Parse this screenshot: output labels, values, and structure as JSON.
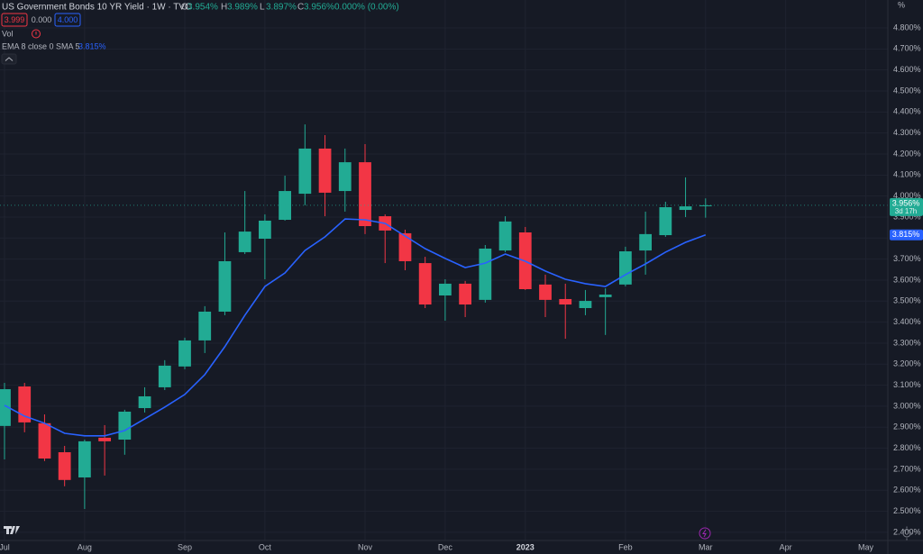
{
  "chart_data": {
    "type": "candlestick",
    "title": "US Government Bonds 10 YR Yield · 1W · TVC",
    "legend": {
      "ohlc": [
        {
          "key": "O",
          "value": "3.954%"
        },
        {
          "key": "H",
          "value": "3.989%"
        },
        {
          "key": "L",
          "value": "3.897%"
        },
        {
          "key": "C",
          "value": "3.956%"
        }
      ],
      "change": "0.000% (0.00%)",
      "bid": "3.999",
      "spread": "0.000",
      "ask": "4.000",
      "vol": "Vol"
    },
    "y_unit": "%",
    "categories": [
      null,
      null,
      null,
      null,
      null,
      null,
      null,
      null,
      null,
      null,
      null,
      null,
      null,
      null,
      null,
      null,
      null,
      null,
      null,
      null,
      null,
      null,
      null,
      null,
      null,
      null,
      null,
      null,
      null,
      null,
      null,
      null,
      null,
      null,
      null,
      null
    ],
    "open": [
      2.906,
      3.094,
      2.919,
      2.781,
      2.661,
      2.85,
      2.841,
      2.991,
      3.09,
      3.189,
      3.313,
      3.45,
      3.733,
      3.797,
      3.887,
      4.011,
      4.226,
      4.024,
      4.161,
      3.904,
      3.823,
      3.681,
      3.527,
      3.583,
      3.506,
      3.741,
      3.827,
      3.579,
      3.51,
      3.467,
      3.519,
      3.579,
      3.741,
      3.814,
      3.934,
      3.954
    ],
    "high": [
      3.111,
      3.111,
      2.961,
      2.811,
      2.841,
      2.91,
      2.983,
      3.09,
      3.219,
      3.326,
      3.476,
      3.827,
      4.024,
      3.913,
      4.097,
      4.341,
      4.29,
      4.226,
      4.247,
      3.913,
      3.84,
      3.711,
      3.604,
      3.596,
      3.767,
      3.904,
      3.853,
      3.626,
      3.583,
      3.553,
      3.561,
      3.759,
      3.926,
      3.973,
      4.089,
      3.989
    ],
    "low": [
      2.747,
      2.876,
      2.739,
      2.619,
      2.511,
      2.67,
      2.769,
      2.97,
      3.077,
      3.176,
      3.253,
      3.433,
      3.724,
      3.604,
      3.883,
      3.956,
      3.904,
      3.926,
      3.819,
      3.681,
      3.647,
      3.467,
      3.407,
      3.424,
      3.493,
      3.733,
      3.553,
      3.424,
      3.321,
      3.433,
      3.339,
      3.57,
      3.626,
      3.806,
      3.9,
      3.897
    ],
    "close": [
      3.081,
      2.923,
      2.751,
      2.649,
      2.833,
      2.833,
      2.974,
      3.047,
      3.193,
      3.313,
      3.45,
      3.69,
      3.831,
      3.883,
      4.024,
      4.226,
      4.016,
      4.161,
      3.857,
      3.836,
      3.69,
      3.484,
      3.583,
      3.484,
      3.75,
      3.879,
      3.557,
      3.506,
      3.484,
      3.501,
      3.531,
      3.737,
      3.819,
      3.947,
      3.951,
      3.956
    ],
    "up_color": "#22ab94",
    "down_color": "#f23645",
    "last_price_label": "3.956%",
    "countdown": "3d 17h",
    "overlays": [
      {
        "type": "line",
        "name": "EMA 8 close 0 SMA 5",
        "color": "#2962ff",
        "values": [
          3.004,
          2.953,
          2.919,
          2.871,
          2.859,
          2.859,
          2.884,
          2.94,
          2.996,
          3.056,
          3.15,
          3.283,
          3.433,
          3.57,
          3.634,
          3.741,
          3.806,
          3.891,
          3.887,
          3.87,
          3.81,
          3.75,
          3.703,
          3.66,
          3.681,
          3.724,
          3.69,
          3.643,
          3.604,
          3.583,
          3.57,
          3.626,
          3.677,
          3.733,
          3.78,
          3.815
        ],
        "value_label": "3.815%"
      }
    ],
    "xlim": [
      -0.225,
      44.1
    ],
    "xticks": [
      {
        "value": 0,
        "label": "Jul"
      },
      {
        "value": 4,
        "label": "Aug"
      },
      {
        "value": 9,
        "label": "Sep"
      },
      {
        "value": 13,
        "label": "Oct"
      },
      {
        "value": 18,
        "label": "Nov"
      },
      {
        "value": 22,
        "label": "Dec"
      },
      {
        "value": 26,
        "label": "2023"
      },
      {
        "value": 31,
        "label": "Feb"
      },
      {
        "value": 35,
        "label": "Mar"
      },
      {
        "value": 39,
        "label": "Apr"
      },
      {
        "value": 43,
        "label": "May"
      }
    ],
    "ylim": [
      2.361,
      4.933
    ],
    "yticks": [
      {
        "value": 4.8,
        "label": "4.800%"
      },
      {
        "value": 4.7,
        "label": "4.700%"
      },
      {
        "value": 4.6,
        "label": "4.600%"
      },
      {
        "value": 4.5,
        "label": "4.500%"
      },
      {
        "value": 4.4,
        "label": "4.400%"
      },
      {
        "value": 4.3,
        "label": "4.300%"
      },
      {
        "value": 4.2,
        "label": "4.200%"
      },
      {
        "value": 4.1,
        "label": "4.100%"
      },
      {
        "value": 4.0,
        "label": "4.000%"
      },
      {
        "value": 3.9,
        "label": "3.900%"
      },
      {
        "value": 3.8,
        "label": "3.800%"
      },
      {
        "value": 3.7,
        "label": "3.700%"
      },
      {
        "value": 3.6,
        "label": "3.600%"
      },
      {
        "value": 3.5,
        "label": "3.500%"
      },
      {
        "value": 3.4,
        "label": "3.400%"
      },
      {
        "value": 3.3,
        "label": "3.300%"
      },
      {
        "value": 3.2,
        "label": "3.200%"
      },
      {
        "value": 3.1,
        "label": "3.100%"
      },
      {
        "value": 3.0,
        "label": "3.000%"
      },
      {
        "value": 2.9,
        "label": "2.900%"
      },
      {
        "value": 2.8,
        "label": "2.800%"
      },
      {
        "value": 2.7,
        "label": "2.700%"
      },
      {
        "value": 2.6,
        "label": "2.600%"
      },
      {
        "value": 2.5,
        "label": "2.500%"
      },
      {
        "value": 2.4,
        "label": "2.400%"
      }
    ],
    "grid": true
  }
}
